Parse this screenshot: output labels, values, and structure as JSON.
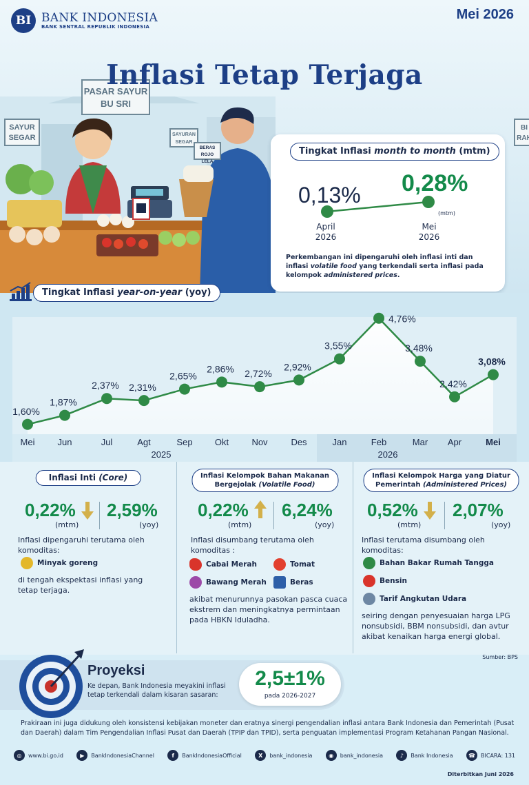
{
  "header": {
    "logo_name": "BANK INDONESIA",
    "logo_sub": "BANK SENTRAL REPUBLIK INDONESIA",
    "logo_mark": "BI",
    "date": "Mei 2026",
    "title": "Inflasi Tetap Terjaga"
  },
  "scene": {
    "sign_pasar": [
      "PASAR SAYUR",
      "BU SRI"
    ],
    "sign_sayur": [
      "SAYUR",
      "SEGAR"
    ],
    "sign_beras": [
      "BERAS",
      "ROJO LELA"
    ],
    "sign_segar": [
      "SAYURAN",
      "SEGAR"
    ],
    "sign_bi": [
      "BI",
      "RAH"
    ]
  },
  "mtm": {
    "title_prefix": "Tingkat Inflasi ",
    "title_italic": "month to month",
    "title_suffix": " (mtm)",
    "april_value": "0,13%",
    "april_label": "April",
    "april_year": "2026",
    "mei_value": "0,28%",
    "mei_label": "Mei",
    "mei_year": "2026",
    "unit": "(mtm)",
    "desc_1": "Perkembangan ini dipengaruhi oleh inflasi inti dan inflasi ",
    "desc_italic_1": "volatile food",
    "desc_2": "  yang terkendali serta inflasi pada kelompok ",
    "desc_italic_2": "administered prices",
    "desc_3": "."
  },
  "yoy": {
    "title_prefix": "Tingkat Inflasi ",
    "title_italic": "year-on-year",
    "title_suffix": " (yoy)"
  },
  "chart_data": {
    "type": "line",
    "categories": [
      "Mei",
      "Jun",
      "Jul",
      "Agt",
      "Sep",
      "Okt",
      "Nov",
      "Des",
      "Jan",
      "Feb",
      "Mar",
      "Apr",
      "Mei"
    ],
    "values": [
      1.6,
      1.87,
      2.37,
      2.31,
      2.65,
      2.86,
      2.72,
      2.92,
      3.55,
      4.76,
      3.48,
      2.42,
      3.08
    ],
    "labels": [
      "1,60%",
      "1,87%",
      "2,37%",
      "2,31%",
      "2,65%",
      "2,86%",
      "2,72%",
      "2,92%",
      "3,55%",
      "4,76%",
      "3,48%",
      "2,42%",
      "3,08%"
    ],
    "year_labels": [
      "2025",
      "2026"
    ],
    "title": "Tingkat Inflasi year-on-year (yoy)",
    "xlabel": "",
    "ylabel": "",
    "color": "#2f8a46"
  },
  "cards": [
    {
      "title_1": "Inflasi Inti ",
      "title_italic": "(Core)",
      "mtm": "0,22%",
      "mtm_unit": "(mtm)",
      "direction": "down",
      "yoy": "2,59%",
      "yoy_unit": "(yoy)",
      "text_1": "Inflasi dipengaruhi terutama oleh komoditas:",
      "commodities": [
        "Minyak goreng"
      ],
      "text_2": "di tengah ekspektasi inflasi yang tetap terjaga."
    },
    {
      "title_1": "Inflasi Kelompok Bahan Makanan",
      "title_2": "Bergejolak ",
      "title_italic": "(Volatile Food)",
      "mtm": "0,22%",
      "mtm_unit": "(mtm)",
      "direction": "up",
      "yoy": "6,24%",
      "yoy_unit": "(yoy)",
      "text_1": "Inflasi disumbang terutama oleh komoditas :",
      "commodities": [
        "Cabai Merah",
        "Tomat",
        "Bawang Merah",
        "Beras"
      ],
      "text_2": "akibat menurunnya pasokan pasca cuaca ekstrem dan meningkatnya permintaan pada HBKN Iduladha."
    },
    {
      "title_1": "Inflasi Kelompok Harga yang Diatur",
      "title_2": "Pemerintah ",
      "title_italic": "(Administered Prices)",
      "mtm": "0,52%",
      "mtm_unit": "(mtm)",
      "direction": "down",
      "yoy": "2,07%",
      "yoy_unit": "(yoy)",
      "text_1": "Inflasi terutama disumbang oleh komoditas:",
      "commodities": [
        "Bahan Bakar Rumah Tangga",
        "Bensin",
        "Tarif Angkutan Udara"
      ],
      "text_2": "seiring dengan penyesuaian harga LPG nonsubsidi, BBM nonsubsidi, dan avtur akibat kenaikan harga energi global."
    }
  ],
  "source": "Sumber: BPS",
  "projection": {
    "title": "Proyeksi",
    "text": "Ke depan, Bank Indonesia meyakini inflasi tetap terkendali dalam kisaran sasaran:",
    "value": "2,5±1%",
    "period": "pada 2026-2027"
  },
  "footnote": "Prakiraan ini juga didukung oleh konsistensi kebijakan moneter dan eratnya sinergi pengendalian inflasi antara Bank Indonesia dan Pemerintah (Pusat dan Daerah) dalam Tim Pengendalian Inflasi Pusat dan Daerah (TPIP dan TPID), serta penguatan implementasi Program Ketahanan Pangan Nasional.",
  "footer": {
    "links": [
      {
        "icon": "globe-icon",
        "glyph": "◎",
        "label": "www.bi.go.id"
      },
      {
        "icon": "youtube-icon",
        "glyph": "▶",
        "label": "BankIndonesiaChannel"
      },
      {
        "icon": "facebook-icon",
        "glyph": "f",
        "label": "BankIndonesiaOfficial"
      },
      {
        "icon": "x-icon",
        "glyph": "X",
        "label": "bank_indonesia"
      },
      {
        "icon": "instagram-icon",
        "glyph": "◉",
        "label": "bank_indonesia"
      },
      {
        "icon": "tiktok-icon",
        "glyph": "♪",
        "label": "Bank Indonesia"
      },
      {
        "icon": "bicara-icon",
        "glyph": "☎",
        "label": "BICARA: 131"
      }
    ],
    "published": "Diterbitkan Juni 2026"
  }
}
